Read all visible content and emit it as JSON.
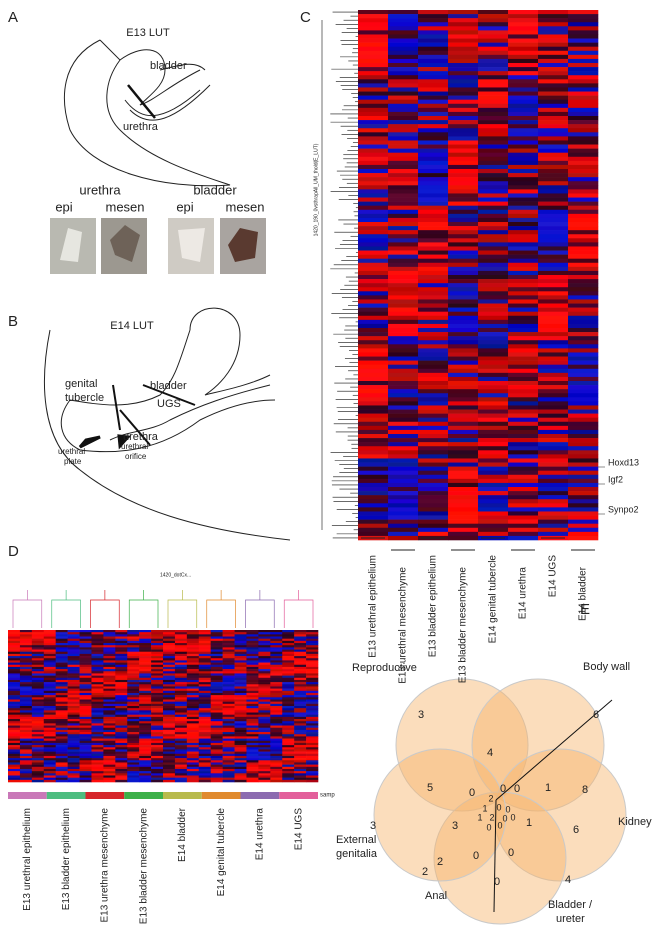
{
  "panel_a": {
    "letter": "A",
    "title": "E13 LUT",
    "labels": [
      "bladder",
      "urethra"
    ],
    "groups": [
      {
        "name": "urethra",
        "tissues": [
          "epi",
          "mesen"
        ]
      },
      {
        "name": "bladder",
        "tissues": [
          "epi",
          "mesen"
        ]
      }
    ]
  },
  "panel_b": {
    "letter": "B",
    "title": "E14 LUT",
    "bladder": "bladder",
    "genital_tubercle": [
      "genital",
      "tubercle"
    ],
    "ugs": "UGS",
    "urethra": "urethra",
    "urethral_plate": [
      "urethral",
      "plate"
    ],
    "urethral_orifice": [
      "urethral",
      "orifice"
    ]
  },
  "panel_c": {
    "letter": "C",
    "dendrogram_label": "1420_190_0vsthrapAll_UM_thold(E_LUT)",
    "genes": [
      "Hoxd13",
      "Igf2",
      "Synpo2"
    ],
    "samples": [
      "E13 urethral epithelium",
      "E13 urethral mesenchyme",
      "E13 bladder epithelium",
      "E13 bladder mesenchyme",
      "E14 genital tubercle",
      "E14 urethra",
      "E14 UGS",
      "E14 bladder"
    ]
  },
  "panel_d": {
    "letter": "D",
    "dendrogram_label": "1420_dotCx...",
    "band_label": "samp",
    "samples": [
      "E13 urethral epithelium",
      "E13 bladder epithelium",
      "E13 urethra mesenchyme",
      "E13 bladder mesenchyme",
      "E14 bladder",
      "E14 genital tubercle",
      "E14 urethra",
      "E14 UGS"
    ],
    "band_colors": [
      "#c978b8",
      "#4dbd80",
      "#d6262b",
      "#3db049",
      "#b8ba4c",
      "#e08a2e",
      "#8c6bb0",
      "#e35f9b"
    ]
  },
  "panel_e": {
    "letter": "E",
    "reproductive": "Reproductive",
    "body_wall": "Body wall",
    "kidney": "Kidney",
    "bladder_ureter": [
      "Bladder /",
      "ureter"
    ],
    "anal": "Anal",
    "external_genitalia": [
      "External",
      "genitalia"
    ],
    "counts": [
      3,
      4,
      6,
      5,
      0,
      0,
      0,
      1,
      8,
      3,
      3,
      1,
      6,
      2,
      0,
      0,
      2,
      4,
      0,
      2,
      1,
      0,
      0,
      1,
      2,
      0,
      0,
      0,
      0
    ]
  }
}
